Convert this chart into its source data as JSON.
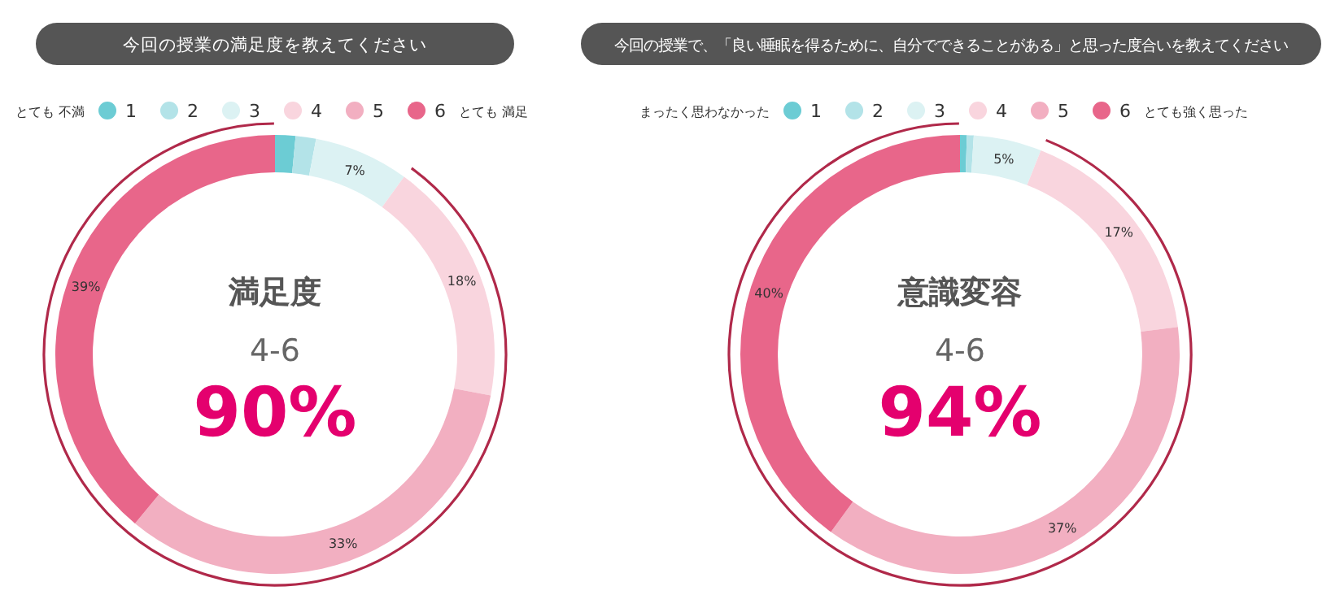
{
  "chart_data": [
    {
      "type": "donut",
      "title": "今回の授業の満足度を教えてください",
      "categories": [
        "1",
        "2",
        "3",
        "4",
        "5",
        "6"
      ],
      "values": [
        1.5,
        1.5,
        7,
        18,
        33,
        39
      ],
      "colors": [
        "#6cccd4",
        "#b3e3e8",
        "#dcf2f3",
        "#f9d5de",
        "#f2afc1",
        "#e8668a"
      ],
      "value_labels": [
        null,
        null,
        "7%",
        "18%",
        "33%",
        "39%"
      ],
      "legend": "top",
      "annotations": [
        "とても 不満",
        "とても 満足",
        "満足度",
        "4-6",
        "90%"
      ]
    },
    {
      "type": "donut",
      "title": "今回の授業で、「良い睡眠を得るために、自分でできることがある」と思った度合いを教えてください",
      "categories": [
        "1",
        "2",
        "3",
        "4",
        "5",
        "6"
      ],
      "values": [
        0.5,
        0.5,
        5,
        17,
        37,
        40
      ],
      "colors": [
        "#6cccd4",
        "#b3e3e8",
        "#dcf2f3",
        "#f9d5de",
        "#f2afc1",
        "#e8668a"
      ],
      "value_labels": [
        null,
        null,
        "5%",
        "17%",
        "37%",
        "40%"
      ],
      "legend": "top",
      "annotations": [
        "まったく思わなかった",
        "とても強く思った",
        "意識変容",
        "4-6",
        "94%"
      ]
    }
  ]
}
